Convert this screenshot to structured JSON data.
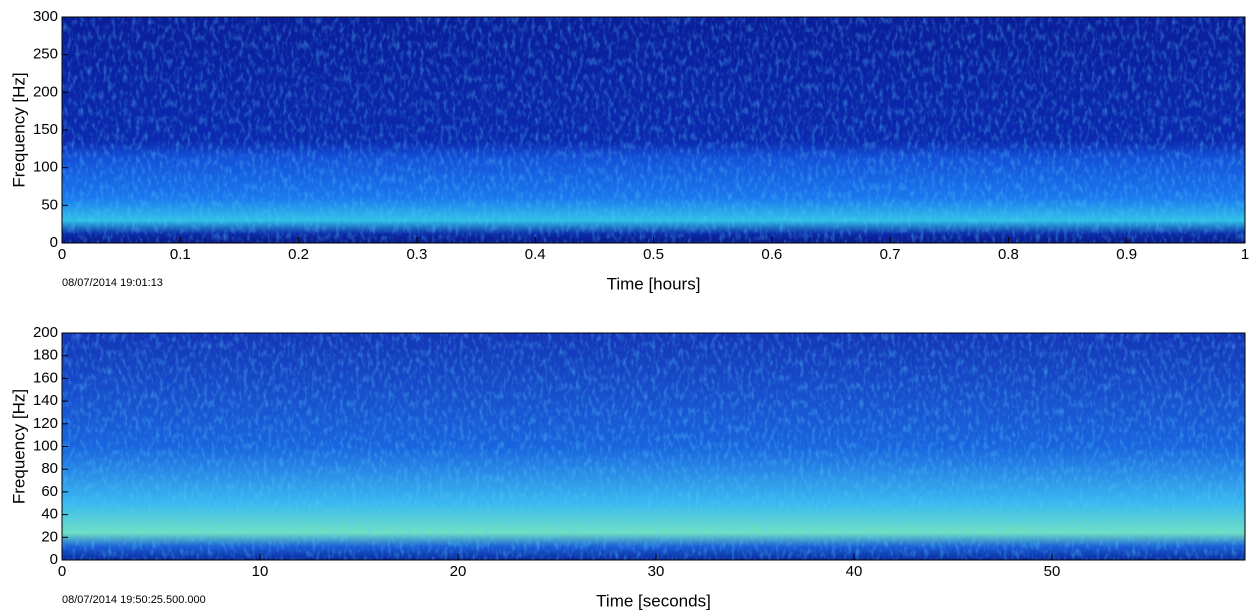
{
  "chart_data": [
    {
      "type": "spectrogram",
      "xlabel": "Time [hours]",
      "ylabel": "Frequency [Hz]",
      "annotation": "08/07/2014 19:01:13",
      "xlim": [
        0,
        1
      ],
      "xticks": [
        0,
        0.1,
        0.2,
        0.3,
        0.4,
        0.5,
        0.6,
        0.7,
        0.8,
        0.9,
        1
      ],
      "ylim": [
        0,
        300
      ],
      "yticks": [
        0,
        50,
        100,
        150,
        200,
        250,
        300
      ]
    },
    {
      "type": "spectrogram",
      "xlabel": "Time [seconds]",
      "ylabel": "Frequency [Hz]",
      "annotation": "08/07/2014 19:50:25.500.000",
      "xlim": [
        0,
        59.75
      ],
      "xticks": [
        0,
        10,
        20,
        30,
        40,
        50
      ],
      "ylim": [
        0,
        200
      ],
      "yticks": [
        0,
        20,
        40,
        60,
        80,
        100,
        120,
        140,
        160,
        180,
        200
      ]
    }
  ]
}
